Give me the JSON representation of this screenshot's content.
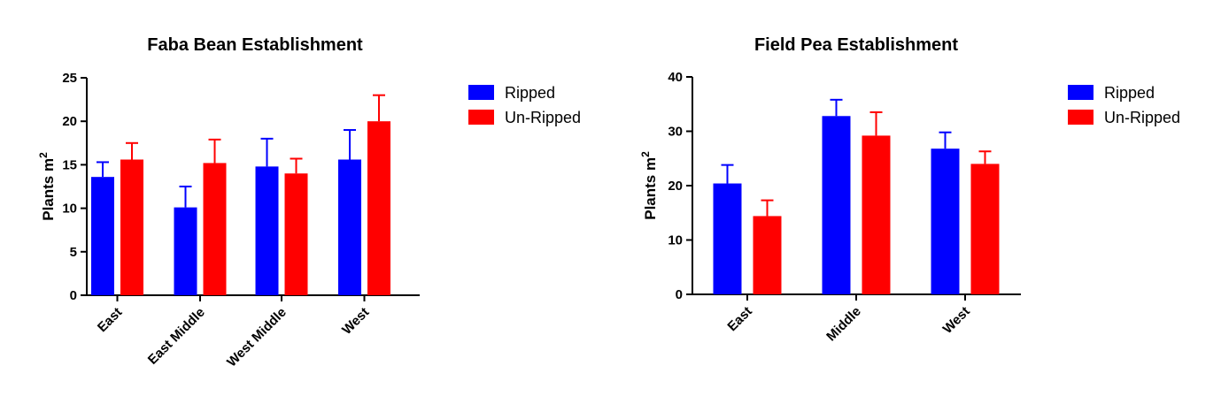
{
  "chart_data": [
    {
      "type": "bar",
      "title": "Faba Bean Establishment",
      "ylabel_base": "Plants m",
      "ylabel_sup": "2",
      "xlabel": "",
      "ylim": [
        0,
        25
      ],
      "yticks": [
        "0",
        "5",
        "10",
        "15",
        "20",
        "25"
      ],
      "categories": [
        "East",
        "East Middle",
        "West Middle",
        "West"
      ],
      "series": [
        {
          "name": "Ripped",
          "color": "#0000ff",
          "values": [
            13.6,
            10.1,
            14.8,
            15.6
          ],
          "errors": [
            1.7,
            2.4,
            3.2,
            3.4
          ]
        },
        {
          "name": "Un-Ripped",
          "color": "#ff0000",
          "values": [
            15.6,
            15.2,
            14.0,
            20.0
          ],
          "errors": [
            1.9,
            2.7,
            1.7,
            3.0
          ]
        }
      ],
      "legend_position": "right"
    },
    {
      "type": "bar",
      "title": "Field Pea Establishment",
      "ylabel_base": "Plants m",
      "ylabel_sup": "2",
      "xlabel": "",
      "ylim": [
        0,
        40
      ],
      "yticks": [
        "0",
        "10",
        "20",
        "30",
        "40"
      ],
      "categories": [
        "East",
        "Middle",
        "West"
      ],
      "series": [
        {
          "name": "Ripped",
          "color": "#0000ff",
          "values": [
            20.4,
            32.8,
            26.8
          ],
          "errors": [
            3.4,
            3.0,
            3.0
          ]
        },
        {
          "name": "Un-Ripped",
          "color": "#ff0000",
          "values": [
            14.4,
            29.2,
            24.0
          ],
          "errors": [
            2.9,
            4.3,
            2.3
          ]
        }
      ],
      "legend_position": "right"
    }
  ]
}
